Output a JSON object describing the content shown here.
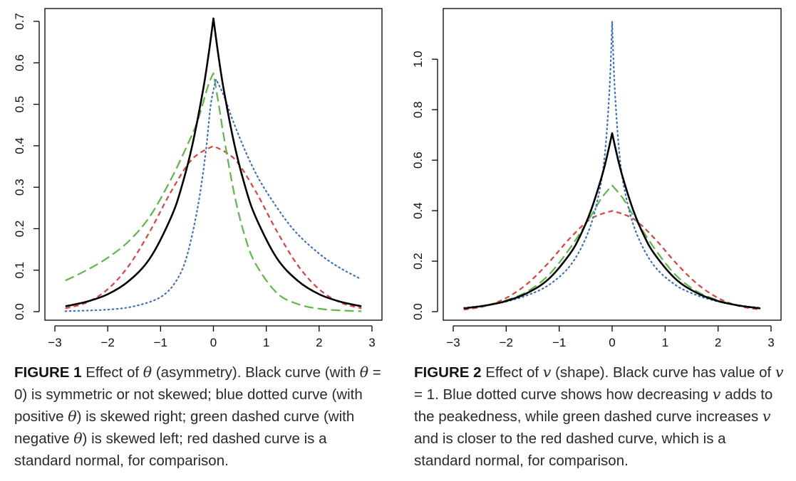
{
  "captions": [
    {
      "label": "FIGURE 1",
      "parts": [
        "Effect of ",
        "θ",
        " (asymmetry). Black curve (with ",
        "θ",
        " = 0) is symmetric or not skewed; blue dotted curve (with positive ",
        "θ",
        ") is skewed right; green dashed curve (with negative ",
        "θ",
        ") is skewed left; red dashed curve is a standard normal, for comparison."
      ]
    },
    {
      "label": "FIGURE 2",
      "parts": [
        "Effect of ",
        "v",
        " (shape). Black curve has value of ",
        "v",
        " = 1. Blue dotted curve shows how decreasing ",
        "v",
        " adds to the peakedness, while green dashed curve increases ",
        "v",
        " and is closer to the red dashed curve, which is a standard normal, for comparison."
      ]
    }
  ],
  "chart_data": [
    {
      "type": "line",
      "xlim": [
        -3,
        3
      ],
      "ylim": [
        0,
        0.7
      ],
      "x_ticks": [
        -3,
        -2,
        -1,
        0,
        1,
        2,
        3
      ],
      "x_tick_labels": [
        "−3",
        "−2",
        "−1",
        "0",
        "1",
        "2",
        "3"
      ],
      "y_ticks": [
        0,
        0.1,
        0.2,
        0.3,
        0.4,
        0.5,
        0.6,
        0.7
      ],
      "y_tick_labels": [
        "0.0",
        "0.1",
        "0.2",
        "0.3",
        "0.4",
        "0.5",
        "0.6",
        "0.7"
      ],
      "grid": false,
      "series": [
        {
          "color": "#000000",
          "style": "solid",
          "x": [
            -2.8,
            -2.4,
            -2.0,
            -1.6,
            -1.2,
            -0.8,
            -0.6,
            -0.4,
            -0.2,
            -0.1,
            0,
            0.1,
            0.2,
            0.4,
            0.6,
            0.8,
            1.2,
            1.6,
            2.0,
            2.4,
            2.8
          ],
          "y": [
            0.013,
            0.024,
            0.042,
            0.074,
            0.129,
            0.228,
            0.302,
            0.401,
            0.532,
            0.613,
            0.707,
            0.613,
            0.532,
            0.401,
            0.302,
            0.228,
            0.129,
            0.074,
            0.042,
            0.024,
            0.013
          ]
        },
        {
          "color": "#3a6fc4",
          "style": "dotted",
          "x": [
            -2.8,
            -2.0,
            -1.5,
            -1.0,
            -0.7,
            -0.5,
            -0.3,
            -0.15,
            -0.05,
            0.05,
            0.2,
            0.4,
            0.7,
            1.0,
            1.5,
            2.0,
            2.4,
            2.8
          ],
          "y": [
            0.001,
            0.005,
            0.013,
            0.035,
            0.075,
            0.135,
            0.25,
            0.38,
            0.5,
            0.56,
            0.52,
            0.45,
            0.36,
            0.29,
            0.2,
            0.14,
            0.105,
            0.078
          ]
        },
        {
          "color": "#5cb846",
          "style": "longdash",
          "x": [
            -2.8,
            -2.4,
            -2.0,
            -1.6,
            -1.2,
            -0.8,
            -0.5,
            -0.3,
            -0.1,
            0,
            0.1,
            0.2,
            0.4,
            0.6,
            0.8,
            1.2,
            1.6,
            2.0,
            2.4,
            2.8
          ],
          "y": [
            0.075,
            0.1,
            0.13,
            0.17,
            0.23,
            0.32,
            0.4,
            0.46,
            0.545,
            0.575,
            0.5,
            0.42,
            0.28,
            0.18,
            0.115,
            0.045,
            0.018,
            0.007,
            0.003,
            0.001
          ]
        },
        {
          "color": "#e04040",
          "style": "dashed",
          "x": [
            -2.8,
            -2.4,
            -2.0,
            -1.6,
            -1.2,
            -0.8,
            -0.4,
            0,
            0.4,
            0.8,
            1.2,
            1.6,
            2.0,
            2.4,
            2.8
          ],
          "y": [
            0.008,
            0.022,
            0.054,
            0.111,
            0.194,
            0.29,
            0.368,
            0.399,
            0.368,
            0.29,
            0.194,
            0.111,
            0.054,
            0.022,
            0.008
          ]
        }
      ]
    },
    {
      "type": "line",
      "xlim": [
        -3,
        3
      ],
      "ylim": [
        0,
        1.15
      ],
      "x_ticks": [
        -3,
        -2,
        -1,
        0,
        1,
        2,
        3
      ],
      "x_tick_labels": [
        "−3",
        "−2",
        "−1",
        "0",
        "1",
        "2",
        "3"
      ],
      "y_ticks": [
        0,
        0.2,
        0.4,
        0.6,
        0.8,
        1.0
      ],
      "y_tick_labels": [
        "0.0",
        "0.2",
        "0.4",
        "0.6",
        "0.8",
        "1.0"
      ],
      "grid": false,
      "series": [
        {
          "color": "#000000",
          "style": "solid",
          "x": [
            -2.8,
            -2.4,
            -2.0,
            -1.6,
            -1.2,
            -0.8,
            -0.6,
            -0.4,
            -0.2,
            -0.1,
            0,
            0.1,
            0.2,
            0.4,
            0.6,
            0.8,
            1.2,
            1.6,
            2.0,
            2.4,
            2.8
          ],
          "y": [
            0.013,
            0.024,
            0.042,
            0.074,
            0.129,
            0.228,
            0.302,
            0.401,
            0.532,
            0.613,
            0.707,
            0.613,
            0.532,
            0.401,
            0.302,
            0.228,
            0.129,
            0.074,
            0.042,
            0.024,
            0.013
          ]
        },
        {
          "color": "#3a6fc4",
          "style": "dotted",
          "x": [
            -2.8,
            -2.4,
            -2.0,
            -1.6,
            -1.2,
            -0.8,
            -0.5,
            -0.3,
            -0.15,
            -0.05,
            0,
            0.05,
            0.15,
            0.3,
            0.5,
            0.8,
            1.2,
            1.6,
            2.0,
            2.4,
            2.8
          ],
          "y": [
            0.015,
            0.025,
            0.04,
            0.065,
            0.105,
            0.18,
            0.29,
            0.42,
            0.6,
            0.88,
            1.15,
            0.88,
            0.6,
            0.42,
            0.29,
            0.18,
            0.105,
            0.065,
            0.04,
            0.025,
            0.015
          ]
        },
        {
          "color": "#5cb846",
          "style": "longdash",
          "x": [
            -2.8,
            -2.4,
            -2.0,
            -1.6,
            -1.2,
            -0.8,
            -0.4,
            -0.2,
            0,
            0.2,
            0.4,
            0.8,
            1.2,
            1.6,
            2.0,
            2.4,
            2.8
          ],
          "y": [
            0.012,
            0.024,
            0.045,
            0.08,
            0.145,
            0.25,
            0.38,
            0.45,
            0.5,
            0.45,
            0.38,
            0.25,
            0.145,
            0.08,
            0.045,
            0.024,
            0.012
          ]
        },
        {
          "color": "#e04040",
          "style": "dashed",
          "x": [
            -2.8,
            -2.4,
            -2.0,
            -1.6,
            -1.2,
            -0.8,
            -0.4,
            0,
            0.4,
            0.8,
            1.2,
            1.6,
            2.0,
            2.4,
            2.8
          ],
          "y": [
            0.008,
            0.022,
            0.054,
            0.111,
            0.194,
            0.29,
            0.368,
            0.399,
            0.368,
            0.29,
            0.194,
            0.111,
            0.054,
            0.022,
            0.008
          ]
        }
      ]
    }
  ]
}
